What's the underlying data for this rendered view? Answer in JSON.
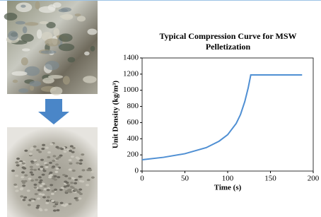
{
  "chart_data": {
    "type": "line",
    "title": "Typical Compression Curve for MSW Pelletization",
    "xlabel": "Time (s)",
    "ylabel": "Unit Density (kg/m³)",
    "x": [
      0,
      25,
      50,
      75,
      90,
      100,
      110,
      115,
      120,
      124,
      127,
      150,
      187
    ],
    "values": [
      140,
      170,
      215,
      290,
      370,
      450,
      590,
      700,
      860,
      1030,
      1190,
      1190,
      1190
    ],
    "color": "#4f8fd3",
    "xlim": [
      0,
      200
    ],
    "xticks": [
      0,
      50,
      100,
      150,
      200
    ],
    "ylim": [
      0,
      1400
    ],
    "yticks": [
      0,
      200,
      400,
      600,
      800,
      1000,
      1200,
      1400
    ]
  }
}
